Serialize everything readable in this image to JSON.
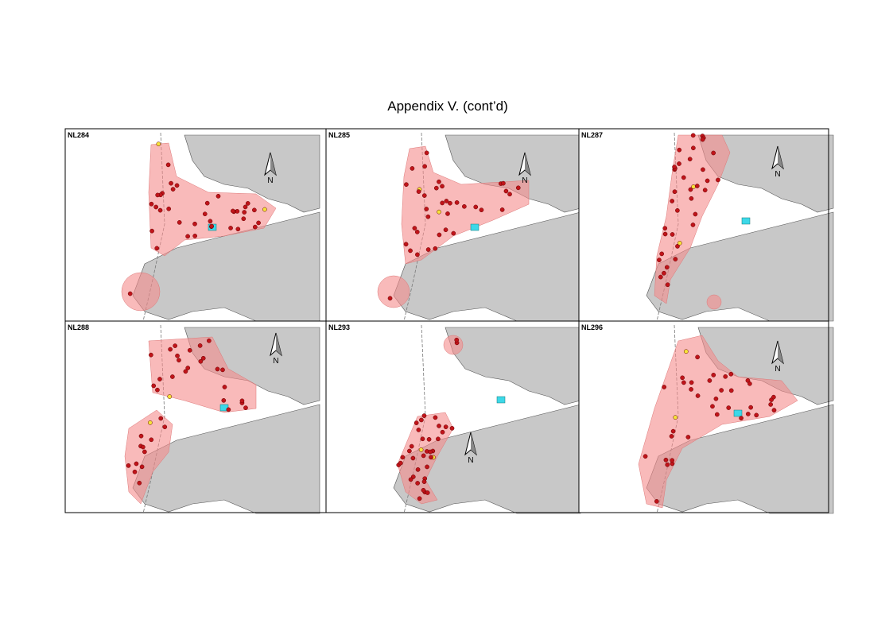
{
  "title": "Appendix V.  (cont’d)",
  "panels": [
    {
      "label": "NL284",
      "north": "N"
    },
    {
      "label": "NL285",
      "north": "N"
    },
    {
      "label": "NL287",
      "north": "N"
    },
    {
      "label": "NL288",
      "north": "N"
    },
    {
      "label": "NL293",
      "north": "N"
    },
    {
      "label": "NL296",
      "north": "N"
    }
  ]
}
